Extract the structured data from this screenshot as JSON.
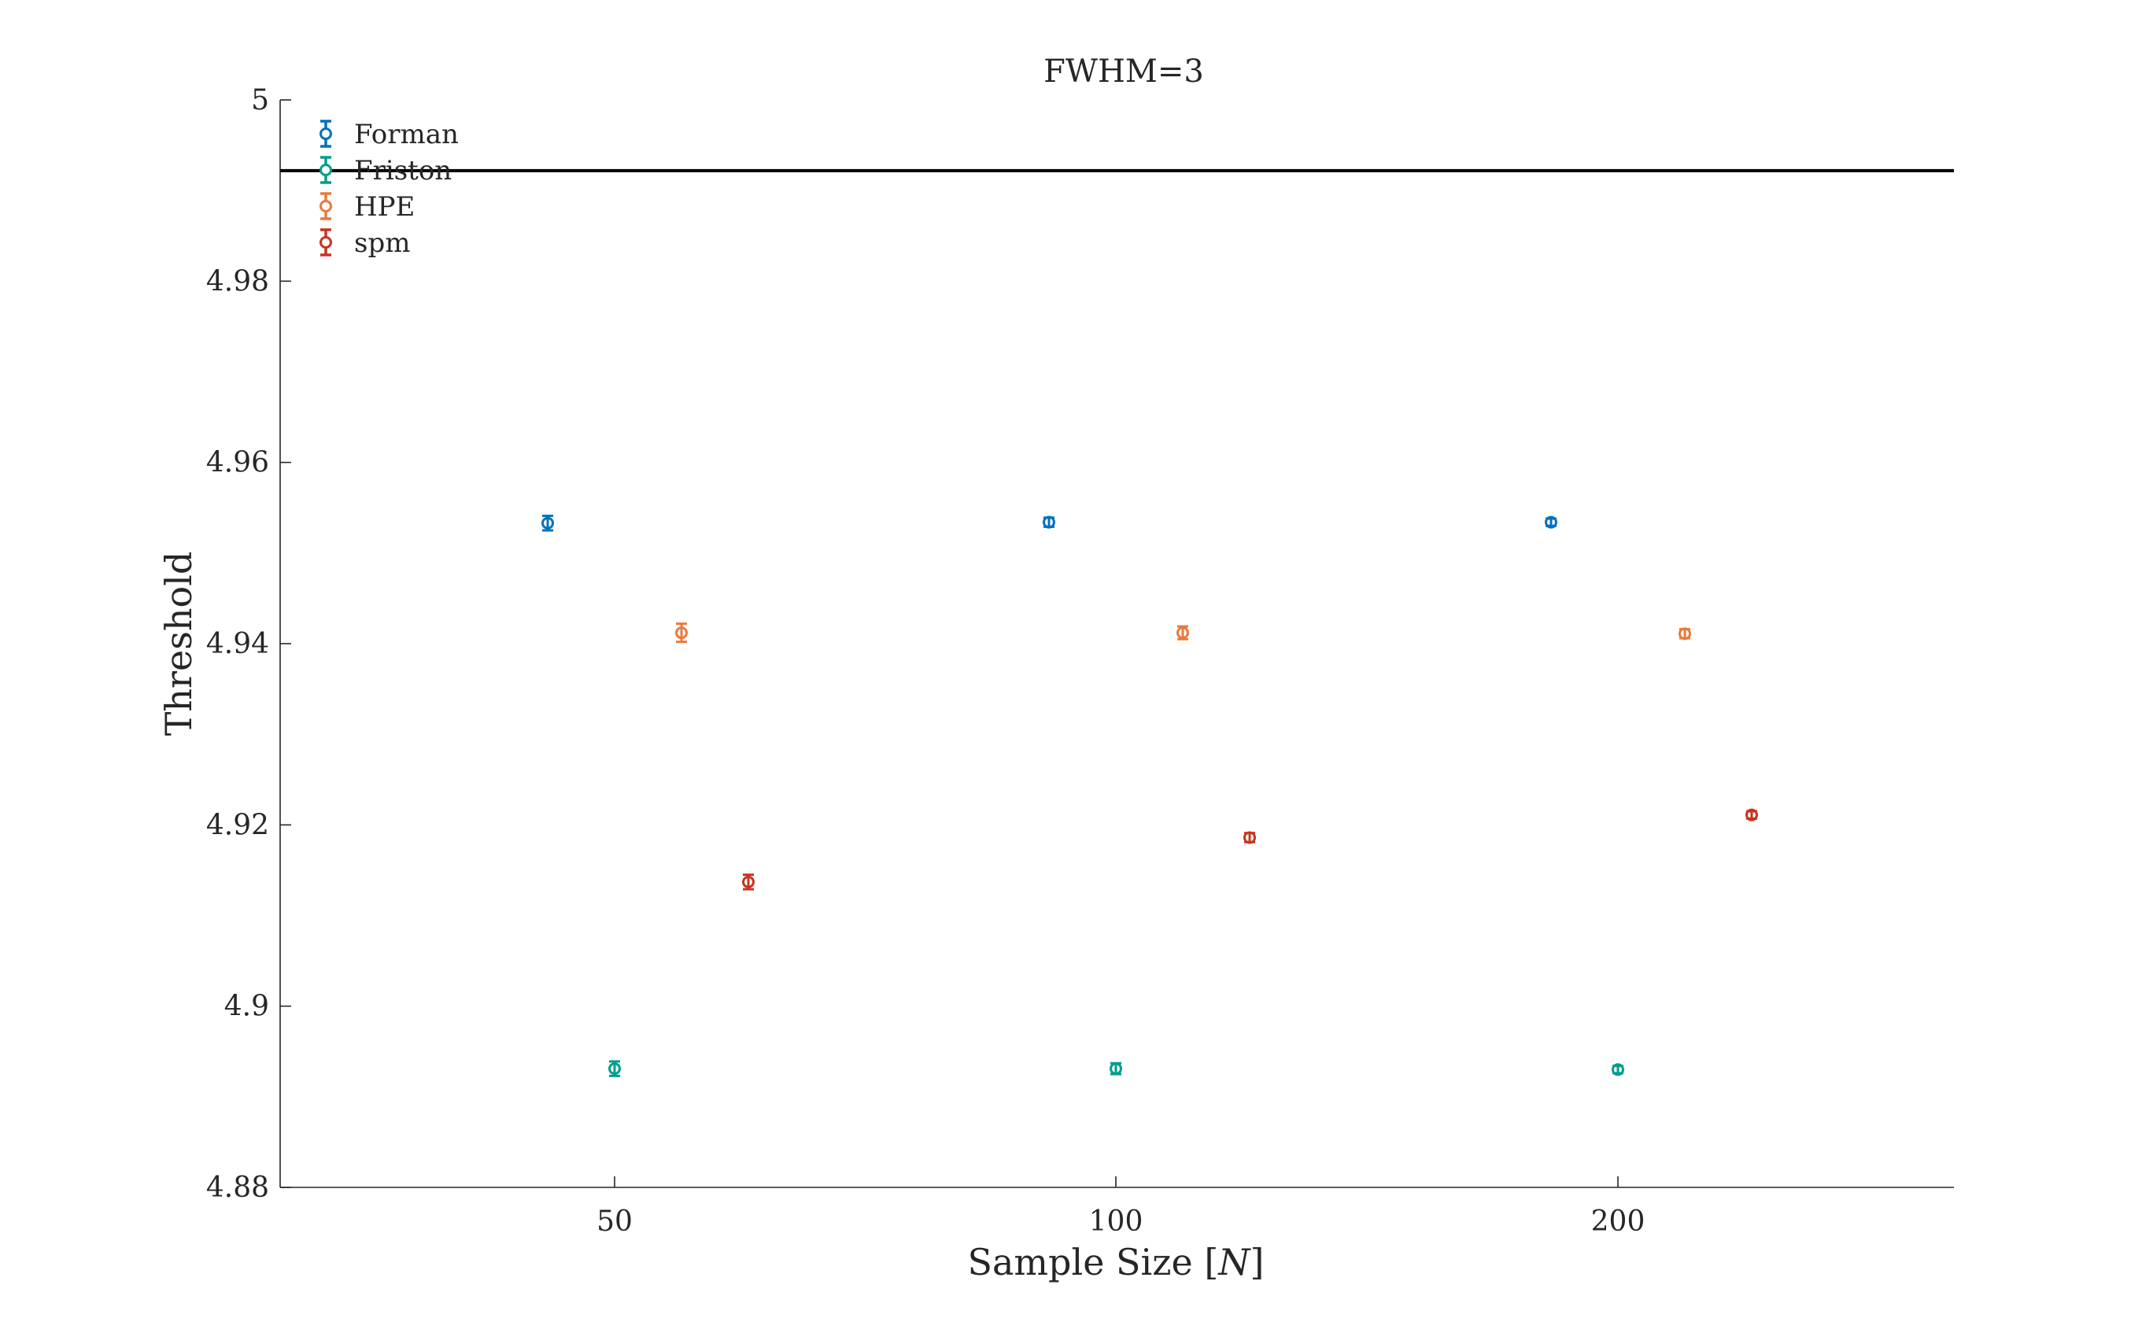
{
  "chart_data": {
    "type": "scatter",
    "title": "FWHM=3",
    "xlabel": "Sample Size [N]",
    "ylabel": "Threshold",
    "ylim": [
      4.88,
      5.0
    ],
    "yticks": [
      4.88,
      4.9,
      4.92,
      4.94,
      4.96,
      4.98,
      5.0
    ],
    "ytick_labels": [
      "4.88",
      "4.9",
      "4.92",
      "4.94",
      "4.96",
      "4.98",
      "5"
    ],
    "categories": [
      "50",
      "100",
      "200"
    ],
    "reference_line": {
      "y": 4.9922,
      "color": "#000000"
    },
    "grid": false,
    "legend_position": "top-left",
    "series": [
      {
        "name": "Forman",
        "color": "#0072BD",
        "values": [
          4.9533,
          4.9534,
          4.9534
        ],
        "errors": [
          0.0008,
          0.0005,
          0.0004
        ]
      },
      {
        "name": "Friston",
        "color": "#009E8E",
        "values": [
          4.8931,
          4.8931,
          4.893
        ],
        "errors": [
          0.0008,
          0.0006,
          0.0004
        ]
      },
      {
        "name": "HPE",
        "color": "#E97A3E",
        "values": [
          4.9412,
          4.9412,
          4.9411
        ],
        "errors": [
          0.001,
          0.0007,
          0.0005
        ]
      },
      {
        "name": "spm",
        "color": "#C8341F",
        "values": [
          4.9137,
          4.9186,
          4.9211
        ],
        "errors": [
          0.0008,
          0.0005,
          0.0004
        ]
      }
    ]
  }
}
